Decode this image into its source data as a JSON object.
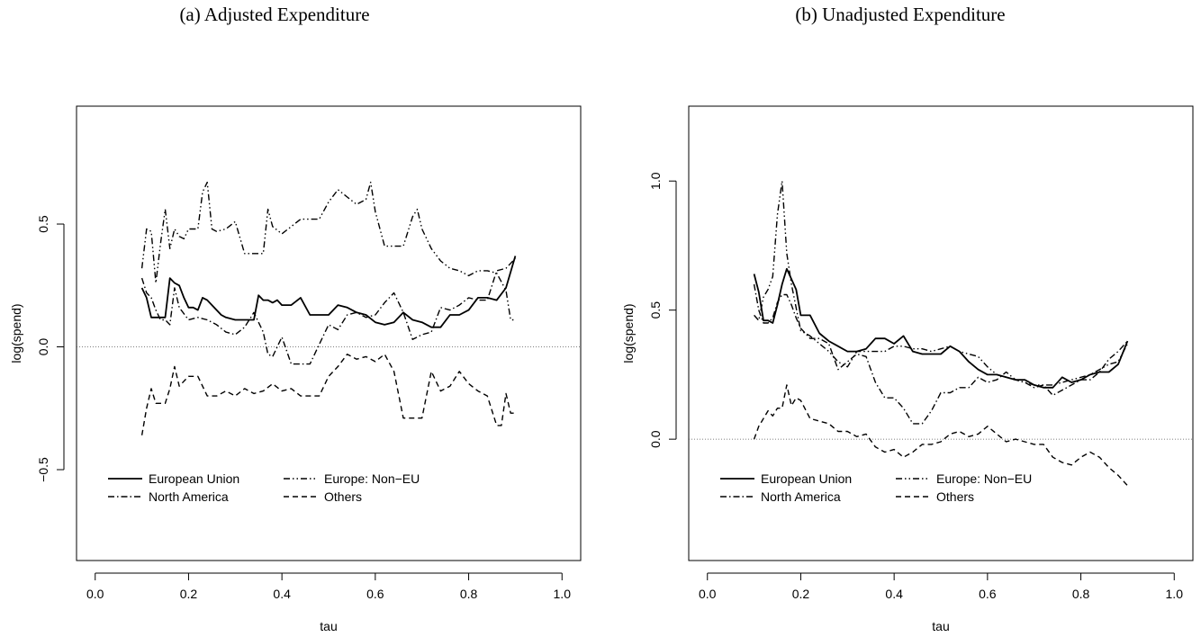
{
  "chart_data": [
    {
      "type": "line",
      "title": "(a) Adjusted Expenditure",
      "xlabel": "tau",
      "ylabel": "log(spend)",
      "xlim": [
        -0.04,
        1.04
      ],
      "ylim": [
        -0.87,
        0.98
      ],
      "xticks": [
        "0.0",
        "0.2",
        "0.4",
        "0.6",
        "0.8",
        "1.0"
      ],
      "xtick_values": [
        0,
        0.2,
        0.4,
        0.6,
        0.8,
        1.0
      ],
      "yticks": [
        "−0.5",
        "0.0",
        "0.5"
      ],
      "ytick_values": [
        -0.5,
        0,
        0.5
      ],
      "reference_line": 0,
      "legend_position": "bottom-left",
      "series": [
        {
          "name": "European Union",
          "dash": "solid",
          "x": [
            0.1,
            0.11,
            0.12,
            0.13,
            0.14,
            0.15,
            0.16,
            0.17,
            0.18,
            0.19,
            0.2,
            0.21,
            0.22,
            0.23,
            0.24,
            0.25,
            0.26,
            0.27,
            0.28,
            0.3,
            0.32,
            0.34,
            0.35,
            0.36,
            0.37,
            0.38,
            0.39,
            0.4,
            0.42,
            0.44,
            0.46,
            0.5,
            0.52,
            0.54,
            0.56,
            0.58,
            0.6,
            0.62,
            0.64,
            0.66,
            0.68,
            0.7,
            0.72,
            0.74,
            0.76,
            0.78,
            0.8,
            0.82,
            0.84,
            0.86,
            0.88,
            0.9
          ],
          "y": [
            0.24,
            0.2,
            0.12,
            0.12,
            0.12,
            0.12,
            0.28,
            0.26,
            0.25,
            0.2,
            0.16,
            0.16,
            0.15,
            0.2,
            0.19,
            0.17,
            0.15,
            0.13,
            0.12,
            0.11,
            0.11,
            0.11,
            0.21,
            0.19,
            0.19,
            0.18,
            0.19,
            0.17,
            0.17,
            0.2,
            0.13,
            0.13,
            0.17,
            0.16,
            0.14,
            0.13,
            0.1,
            0.09,
            0.1,
            0.14,
            0.11,
            0.1,
            0.08,
            0.08,
            0.13,
            0.13,
            0.15,
            0.2,
            0.2,
            0.19,
            0.24,
            0.37
          ]
        },
        {
          "name": "North America",
          "dash": "dashdot",
          "x": [
            0.1,
            0.11,
            0.12,
            0.13,
            0.14,
            0.15,
            0.16,
            0.17,
            0.18,
            0.2,
            0.22,
            0.24,
            0.26,
            0.28,
            0.3,
            0.32,
            0.34,
            0.36,
            0.37,
            0.38,
            0.4,
            0.42,
            0.44,
            0.46,
            0.48,
            0.5,
            0.52,
            0.54,
            0.56,
            0.58,
            0.6,
            0.62,
            0.64,
            0.66,
            0.68,
            0.7,
            0.72,
            0.74,
            0.76,
            0.78,
            0.8,
            0.82,
            0.84,
            0.86,
            0.88,
            0.9
          ],
          "y": [
            0.28,
            0.22,
            0.2,
            0.15,
            0.11,
            0.11,
            0.09,
            0.24,
            0.16,
            0.11,
            0.12,
            0.11,
            0.09,
            0.06,
            0.05,
            0.08,
            0.14,
            0.06,
            -0.03,
            -0.04,
            0.04,
            -0.07,
            -0.07,
            -0.07,
            0.01,
            0.09,
            0.07,
            0.13,
            0.14,
            0.12,
            0.13,
            0.18,
            0.22,
            0.14,
            0.03,
            0.05,
            0.06,
            0.16,
            0.15,
            0.17,
            0.2,
            0.19,
            0.19,
            0.31,
            0.32,
            0.36
          ]
        },
        {
          "name": "Europe: Non−EU",
          "dash": "dashdotdot",
          "x": [
            0.1,
            0.11,
            0.12,
            0.13,
            0.14,
            0.15,
            0.16,
            0.17,
            0.18,
            0.19,
            0.2,
            0.22,
            0.23,
            0.24,
            0.25,
            0.26,
            0.28,
            0.3,
            0.32,
            0.34,
            0.36,
            0.37,
            0.38,
            0.4,
            0.42,
            0.44,
            0.46,
            0.48,
            0.5,
            0.52,
            0.54,
            0.56,
            0.58,
            0.59,
            0.6,
            0.62,
            0.64,
            0.66,
            0.68,
            0.69,
            0.7,
            0.72,
            0.74,
            0.76,
            0.78,
            0.8,
            0.82,
            0.84,
            0.86,
            0.88,
            0.89,
            0.9
          ],
          "y": [
            0.32,
            0.48,
            0.47,
            0.26,
            0.42,
            0.56,
            0.4,
            0.48,
            0.45,
            0.44,
            0.48,
            0.48,
            0.63,
            0.67,
            0.48,
            0.47,
            0.48,
            0.51,
            0.38,
            0.38,
            0.38,
            0.56,
            0.49,
            0.46,
            0.49,
            0.52,
            0.52,
            0.52,
            0.59,
            0.64,
            0.61,
            0.58,
            0.6,
            0.67,
            0.55,
            0.41,
            0.41,
            0.41,
            0.53,
            0.56,
            0.48,
            0.4,
            0.35,
            0.32,
            0.31,
            0.29,
            0.31,
            0.31,
            0.3,
            0.23,
            0.11,
            0.11
          ]
        },
        {
          "name": "Others",
          "dash": "dashed",
          "x": [
            0.1,
            0.11,
            0.12,
            0.13,
            0.14,
            0.15,
            0.16,
            0.17,
            0.18,
            0.2,
            0.22,
            0.24,
            0.26,
            0.28,
            0.3,
            0.32,
            0.34,
            0.36,
            0.38,
            0.4,
            0.42,
            0.44,
            0.46,
            0.48,
            0.5,
            0.52,
            0.54,
            0.56,
            0.58,
            0.6,
            0.62,
            0.64,
            0.66,
            0.68,
            0.7,
            0.72,
            0.74,
            0.76,
            0.78,
            0.8,
            0.82,
            0.84,
            0.85,
            0.86,
            0.87,
            0.88,
            0.89,
            0.9
          ],
          "y": [
            -0.36,
            -0.25,
            -0.17,
            -0.23,
            -0.23,
            -0.23,
            -0.17,
            -0.08,
            -0.16,
            -0.12,
            -0.12,
            -0.2,
            -0.2,
            -0.18,
            -0.2,
            -0.17,
            -0.19,
            -0.18,
            -0.15,
            -0.18,
            -0.17,
            -0.2,
            -0.2,
            -0.2,
            -0.12,
            -0.08,
            -0.03,
            -0.05,
            -0.04,
            -0.06,
            -0.03,
            -0.1,
            -0.29,
            -0.29,
            -0.29,
            -0.1,
            -0.18,
            -0.16,
            -0.1,
            -0.15,
            -0.18,
            -0.2,
            -0.26,
            -0.32,
            -0.32,
            -0.19,
            -0.27,
            -0.27
          ]
        }
      ]
    },
    {
      "type": "line",
      "title": "(b) Unadjusted Expenditure",
      "xlabel": "tau",
      "ylabel": "log(spend)",
      "xlim": [
        -0.04,
        1.04
      ],
      "ylim": [
        -0.47,
        1.29
      ],
      "xticks": [
        "0.0",
        "0.2",
        "0.4",
        "0.6",
        "0.8",
        "1.0"
      ],
      "xtick_values": [
        0,
        0.2,
        0.4,
        0.6,
        0.8,
        1.0
      ],
      "yticks": [
        "0.0",
        "0.5",
        "1.0"
      ],
      "ytick_values": [
        0,
        0.5,
        1.0
      ],
      "reference_line": 0,
      "legend_position": "bottom-left",
      "series": [
        {
          "name": "European Union",
          "dash": "solid",
          "x": [
            0.1,
            0.11,
            0.12,
            0.13,
            0.14,
            0.15,
            0.16,
            0.17,
            0.18,
            0.19,
            0.2,
            0.22,
            0.24,
            0.26,
            0.28,
            0.3,
            0.32,
            0.34,
            0.36,
            0.38,
            0.4,
            0.42,
            0.44,
            0.46,
            0.48,
            0.5,
            0.52,
            0.54,
            0.56,
            0.58,
            0.6,
            0.62,
            0.64,
            0.66,
            0.68,
            0.7,
            0.72,
            0.74,
            0.76,
            0.78,
            0.8,
            0.82,
            0.84,
            0.86,
            0.88,
            0.9
          ],
          "y": [
            0.64,
            0.57,
            0.46,
            0.46,
            0.45,
            0.52,
            0.6,
            0.66,
            0.62,
            0.58,
            0.48,
            0.48,
            0.41,
            0.38,
            0.36,
            0.34,
            0.34,
            0.35,
            0.39,
            0.39,
            0.37,
            0.4,
            0.34,
            0.33,
            0.33,
            0.33,
            0.36,
            0.34,
            0.3,
            0.27,
            0.25,
            0.25,
            0.24,
            0.23,
            0.23,
            0.21,
            0.2,
            0.2,
            0.24,
            0.22,
            0.23,
            0.25,
            0.26,
            0.26,
            0.29,
            0.38
          ]
        },
        {
          "name": "North America",
          "dash": "dashdot",
          "x": [
            0.1,
            0.11,
            0.12,
            0.13,
            0.14,
            0.15,
            0.16,
            0.17,
            0.18,
            0.19,
            0.2,
            0.22,
            0.24,
            0.26,
            0.28,
            0.3,
            0.32,
            0.34,
            0.36,
            0.38,
            0.4,
            0.42,
            0.44,
            0.46,
            0.48,
            0.5,
            0.52,
            0.54,
            0.56,
            0.58,
            0.6,
            0.62,
            0.64,
            0.66,
            0.68,
            0.7,
            0.72,
            0.74,
            0.76,
            0.78,
            0.8,
            0.82,
            0.84,
            0.86,
            0.88,
            0.9
          ],
          "y": [
            0.6,
            0.5,
            0.45,
            0.45,
            0.47,
            0.53,
            0.56,
            0.56,
            0.52,
            0.47,
            0.43,
            0.39,
            0.39,
            0.37,
            0.27,
            0.3,
            0.33,
            0.32,
            0.22,
            0.16,
            0.16,
            0.12,
            0.06,
            0.06,
            0.11,
            0.18,
            0.18,
            0.2,
            0.2,
            0.24,
            0.22,
            0.23,
            0.26,
            0.23,
            0.22,
            0.2,
            0.21,
            0.17,
            0.19,
            0.21,
            0.23,
            0.23,
            0.26,
            0.31,
            0.34,
            0.38
          ]
        },
        {
          "name": "Europe: Non−EU",
          "dash": "dashdotdot",
          "x": [
            0.1,
            0.11,
            0.12,
            0.13,
            0.14,
            0.15,
            0.16,
            0.17,
            0.18,
            0.2,
            0.22,
            0.24,
            0.26,
            0.28,
            0.3,
            0.32,
            0.34,
            0.36,
            0.38,
            0.4,
            0.42,
            0.44,
            0.46,
            0.48,
            0.5,
            0.52,
            0.54,
            0.56,
            0.58,
            0.6,
            0.62,
            0.64,
            0.66,
            0.68,
            0.7,
            0.72,
            0.74,
            0.76,
            0.78,
            0.8,
            0.82,
            0.84,
            0.86,
            0.88,
            0.9
          ],
          "y": [
            0.48,
            0.46,
            0.55,
            0.58,
            0.63,
            0.87,
            1.0,
            0.72,
            0.6,
            0.42,
            0.4,
            0.37,
            0.34,
            0.3,
            0.28,
            0.34,
            0.34,
            0.34,
            0.34,
            0.36,
            0.36,
            0.35,
            0.35,
            0.34,
            0.35,
            0.36,
            0.34,
            0.33,
            0.32,
            0.28,
            0.25,
            0.24,
            0.23,
            0.22,
            0.21,
            0.21,
            0.21,
            0.22,
            0.23,
            0.24,
            0.25,
            0.27,
            0.29,
            0.3,
            0.37
          ]
        },
        {
          "name": "Others",
          "dash": "dashed",
          "x": [
            0.1,
            0.11,
            0.12,
            0.13,
            0.14,
            0.15,
            0.16,
            0.17,
            0.18,
            0.19,
            0.2,
            0.22,
            0.24,
            0.26,
            0.28,
            0.3,
            0.32,
            0.34,
            0.36,
            0.38,
            0.4,
            0.42,
            0.44,
            0.46,
            0.48,
            0.5,
            0.52,
            0.54,
            0.56,
            0.58,
            0.6,
            0.62,
            0.64,
            0.66,
            0.68,
            0.7,
            0.72,
            0.74,
            0.76,
            0.78,
            0.8,
            0.82,
            0.84,
            0.86,
            0.88,
            0.9
          ],
          "y": [
            0.0,
            0.05,
            0.08,
            0.11,
            0.09,
            0.12,
            0.12,
            0.21,
            0.13,
            0.16,
            0.15,
            0.08,
            0.07,
            0.06,
            0.03,
            0.03,
            0.01,
            0.02,
            -0.03,
            -0.05,
            -0.04,
            -0.07,
            -0.05,
            -0.02,
            -0.02,
            -0.01,
            0.02,
            0.03,
            0.01,
            0.02,
            0.05,
            0.02,
            -0.01,
            0.0,
            -0.01,
            -0.02,
            -0.02,
            -0.07,
            -0.09,
            -0.1,
            -0.07,
            -0.05,
            -0.07,
            -0.11,
            -0.14,
            -0.18
          ]
        }
      ]
    }
  ]
}
